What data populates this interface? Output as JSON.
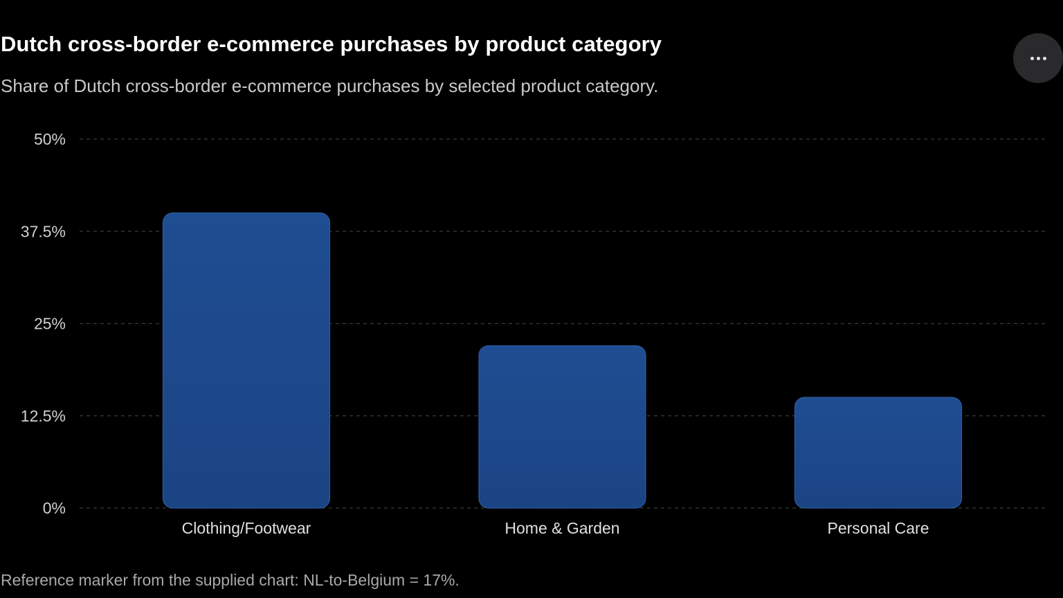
{
  "header": {
    "title": "Dutch cross-border e-commerce purchases by product category",
    "subtitle": "Share of Dutch cross-border e-commerce purchases by selected product category.",
    "more_icon": "ellipsis-horizontal-icon"
  },
  "footnote": "Reference marker from the supplied chart: NL-to-Belgium = 17%.",
  "colors": {
    "bar_top": "#1f4d92",
    "bar_bottom": "#1b4484",
    "bar_stroke": "#2c5aa0",
    "grid": "#3a3a3a",
    "tick_label": "#d0d0d0",
    "category_label": "#e0e0e0"
  },
  "chart_data": {
    "type": "bar",
    "categories": [
      "Clothing/Footwear",
      "Home & Garden",
      "Personal Care"
    ],
    "values": [
      40,
      22,
      15
    ],
    "ylim": [
      0,
      50
    ],
    "yticks": [
      0,
      12.5,
      25,
      37.5,
      50
    ],
    "ytick_labels": [
      "0%",
      "12.5%",
      "25%",
      "37.5%",
      "50%"
    ],
    "grid": true,
    "legend": "none"
  }
}
